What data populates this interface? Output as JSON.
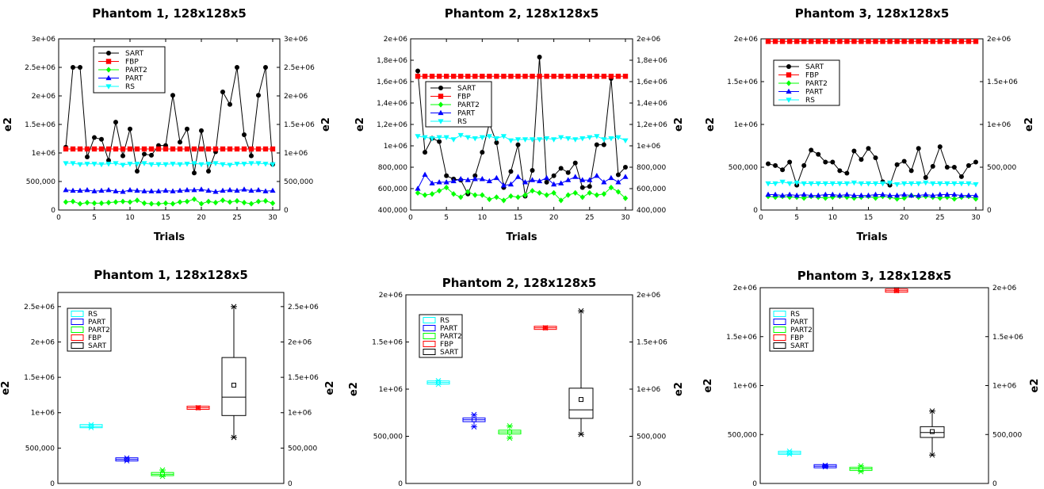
{
  "chart_data": [
    {
      "type": "line",
      "title": "Phantom 1, 128x128x5",
      "xlabel": "Trials",
      "ylabel": "e2",
      "y2label": "e2",
      "x": [
        1,
        2,
        3,
        4,
        5,
        6,
        7,
        8,
        9,
        10,
        11,
        12,
        13,
        14,
        15,
        16,
        17,
        18,
        19,
        20,
        21,
        22,
        23,
        24,
        25,
        26,
        27,
        28,
        29,
        30
      ],
      "xlim": [
        0,
        31
      ],
      "xticks": [
        "0",
        "5",
        "10",
        "15",
        "20",
        "25",
        "30"
      ],
      "ylim": [
        0,
        3000000
      ],
      "yticks": [
        "0",
        "500,000",
        "1e+06",
        "1.5e+06",
        "2e+06",
        "2.5e+06",
        "3e+06"
      ],
      "legend_position": "top-left",
      "series": [
        {
          "name": "SART",
          "color": "#000000",
          "marker": "circle",
          "values": [
            1100000,
            2500000,
            2500000,
            930000,
            1270000,
            1240000,
            870000,
            1540000,
            950000,
            1420000,
            680000,
            980000,
            960000,
            1130000,
            1130000,
            2010000,
            1190000,
            1420000,
            650000,
            1390000,
            680000,
            1020000,
            2070000,
            1850000,
            2500000,
            1320000,
            950000,
            2010000,
            2500000,
            800000
          ]
        },
        {
          "name": "FBP",
          "color": "#ff0000",
          "marker": "square",
          "values": [
            1070000,
            1070000,
            1070000,
            1070000,
            1070000,
            1070000,
            1070000,
            1070000,
            1070000,
            1070000,
            1070000,
            1070000,
            1070000,
            1070000,
            1070000,
            1070000,
            1070000,
            1070000,
            1070000,
            1070000,
            1070000,
            1070000,
            1070000,
            1070000,
            1070000,
            1070000,
            1070000,
            1070000,
            1070000,
            1070000
          ]
        },
        {
          "name": "PART2",
          "color": "#00ff00",
          "marker": "diamond",
          "values": [
            140000,
            150000,
            110000,
            130000,
            120000,
            120000,
            130000,
            140000,
            150000,
            140000,
            170000,
            120000,
            110000,
            110000,
            120000,
            110000,
            140000,
            150000,
            190000,
            110000,
            150000,
            130000,
            170000,
            140000,
            160000,
            130000,
            110000,
            150000,
            160000,
            120000
          ]
        },
        {
          "name": "PART",
          "color": "#0000ff",
          "marker": "triangle-up",
          "values": [
            350000,
            340000,
            340000,
            350000,
            330000,
            340000,
            350000,
            330000,
            320000,
            350000,
            340000,
            330000,
            330000,
            330000,
            340000,
            330000,
            340000,
            350000,
            350000,
            360000,
            340000,
            320000,
            340000,
            350000,
            340000,
            360000,
            340000,
            350000,
            330000,
            340000
          ]
        },
        {
          "name": "RS",
          "color": "#00ffff",
          "marker": "triangle-down",
          "values": [
            820000,
            820000,
            800000,
            810000,
            810000,
            800000,
            810000,
            820000,
            790000,
            810000,
            810000,
            820000,
            800000,
            800000,
            800000,
            810000,
            800000,
            810000,
            820000,
            800000,
            810000,
            820000,
            800000,
            790000,
            810000,
            810000,
            820000,
            820000,
            810000,
            800000
          ]
        }
      ]
    },
    {
      "type": "line",
      "title": "Phantom 2, 128x128x5",
      "xlabel": "Trials",
      "ylabel": "e2",
      "y2label": "e2",
      "x": [
        1,
        2,
        3,
        4,
        5,
        6,
        7,
        8,
        9,
        10,
        11,
        12,
        13,
        14,
        15,
        16,
        17,
        18,
        19,
        20,
        21,
        22,
        23,
        24,
        25,
        26,
        27,
        28,
        29,
        30
      ],
      "xlim": [
        0,
        31
      ],
      "xticks": [
        "0",
        "5",
        "10",
        "15",
        "20",
        "25",
        "30"
      ],
      "ylim": [
        400000,
        2000000
      ],
      "yticks": [
        "400,000",
        "600,000",
        "800,000",
        "1e+06",
        "1,2e+06",
        "1,4e+06",
        "1,6e+06",
        "1,8e+06",
        "2e+06"
      ],
      "legend_position": "center-left",
      "series": [
        {
          "name": "SART",
          "color": "#000000",
          "marker": "circle",
          "values": [
            1700000,
            940000,
            1070000,
            1040000,
            720000,
            690000,
            680000,
            550000,
            720000,
            940000,
            1210000,
            1030000,
            610000,
            760000,
            1010000,
            530000,
            770000,
            1830000,
            660000,
            720000,
            790000,
            750000,
            840000,
            610000,
            620000,
            1010000,
            1010000,
            1630000,
            730000,
            800000
          ]
        },
        {
          "name": "FBP",
          "color": "#ff0000",
          "marker": "square",
          "values": [
            1650000,
            1650000,
            1650000,
            1650000,
            1650000,
            1650000,
            1650000,
            1650000,
            1650000,
            1650000,
            1650000,
            1650000,
            1650000,
            1650000,
            1650000,
            1650000,
            1650000,
            1650000,
            1650000,
            1650000,
            1650000,
            1650000,
            1650000,
            1650000,
            1650000,
            1650000,
            1650000,
            1650000,
            1650000,
            1650000
          ]
        },
        {
          "name": "PART2",
          "color": "#00ff00",
          "marker": "diamond",
          "values": [
            560000,
            540000,
            550000,
            580000,
            610000,
            550000,
            520000,
            570000,
            540000,
            540000,
            500000,
            520000,
            490000,
            530000,
            520000,
            540000,
            580000,
            560000,
            540000,
            560000,
            490000,
            540000,
            560000,
            520000,
            560000,
            540000,
            550000,
            610000,
            570000,
            510000
          ]
        },
        {
          "name": "PART",
          "color": "#0000ff",
          "marker": "triangle-up",
          "values": [
            600000,
            730000,
            650000,
            660000,
            660000,
            670000,
            690000,
            680000,
            690000,
            690000,
            670000,
            700000,
            630000,
            640000,
            710000,
            660000,
            680000,
            670000,
            700000,
            640000,
            650000,
            680000,
            710000,
            680000,
            680000,
            720000,
            660000,
            700000,
            660000,
            710000
          ]
        },
        {
          "name": "RS",
          "color": "#00ffff",
          "marker": "triangle-down",
          "values": [
            1090000,
            1080000,
            1070000,
            1080000,
            1080000,
            1060000,
            1100000,
            1080000,
            1070000,
            1080000,
            1090000,
            1070000,
            1090000,
            1050000,
            1060000,
            1060000,
            1060000,
            1060000,
            1070000,
            1060000,
            1080000,
            1070000,
            1060000,
            1070000,
            1080000,
            1090000,
            1060000,
            1070000,
            1080000,
            1050000
          ]
        }
      ]
    },
    {
      "type": "line",
      "title": "Phantom 3, 128x128x5",
      "xlabel": "Trials",
      "ylabel": "e2",
      "y2label": "e2",
      "x": [
        1,
        2,
        3,
        4,
        5,
        6,
        7,
        8,
        9,
        10,
        11,
        12,
        13,
        14,
        15,
        16,
        17,
        18,
        19,
        20,
        21,
        22,
        23,
        24,
        25,
        26,
        27,
        28,
        29,
        30
      ],
      "xlim": [
        0,
        31
      ],
      "xticks": [
        "0",
        "5",
        "10",
        "15",
        "20",
        "25",
        "30"
      ],
      "ylim": [
        0,
        2000000
      ],
      "yticks": [
        "0",
        "500,000",
        "1e+06",
        "1.5e+06",
        "2e+06"
      ],
      "legend_position": "top-left",
      "series": [
        {
          "name": "SART",
          "color": "#000000",
          "marker": "circle",
          "values": [
            540000,
            520000,
            470000,
            560000,
            290000,
            520000,
            700000,
            650000,
            560000,
            560000,
            460000,
            430000,
            690000,
            590000,
            720000,
            610000,
            330000,
            290000,
            530000,
            570000,
            460000,
            720000,
            380000,
            510000,
            740000,
            500000,
            500000,
            390000,
            520000,
            560000
          ]
        },
        {
          "name": "FBP",
          "color": "#ff0000",
          "marker": "square",
          "values": [
            1970000,
            1970000,
            1970000,
            1970000,
            1970000,
            1970000,
            1970000,
            1970000,
            1970000,
            1970000,
            1970000,
            1970000,
            1970000,
            1970000,
            1970000,
            1970000,
            1970000,
            1970000,
            1970000,
            1970000,
            1970000,
            1970000,
            1970000,
            1970000,
            1970000,
            1970000,
            1970000,
            1970000,
            1970000,
            1970000
          ]
        },
        {
          "name": "PART2",
          "color": "#00ff00",
          "marker": "diamond",
          "values": [
            160000,
            150000,
            160000,
            150000,
            150000,
            140000,
            160000,
            150000,
            140000,
            150000,
            160000,
            150000,
            140000,
            150000,
            160000,
            140000,
            160000,
            150000,
            130000,
            140000,
            170000,
            150000,
            160000,
            150000,
            140000,
            150000,
            130000,
            150000,
            160000,
            130000
          ]
        },
        {
          "name": "PART",
          "color": "#0000ff",
          "marker": "triangle-up",
          "values": [
            180000,
            180000,
            170000,
            180000,
            170000,
            180000,
            170000,
            170000,
            180000,
            180000,
            170000,
            180000,
            170000,
            170000,
            170000,
            180000,
            180000,
            170000,
            170000,
            180000,
            170000,
            170000,
            180000,
            170000,
            180000,
            180000,
            180000,
            170000,
            170000,
            170000
          ]
        },
        {
          "name": "RS",
          "color": "#00ffff",
          "marker": "triangle-down",
          "values": [
            310000,
            310000,
            330000,
            310000,
            320000,
            310000,
            310000,
            310000,
            310000,
            310000,
            310000,
            310000,
            320000,
            310000,
            310000,
            310000,
            310000,
            320000,
            300000,
            310000,
            310000,
            310000,
            320000,
            310000,
            310000,
            310000,
            310000,
            310000,
            310000,
            300000
          ]
        }
      ]
    },
    {
      "type": "box",
      "title": "Phantom 1, 128x128x5",
      "ylabel": "e2",
      "y2label": "e2",
      "ylim": [
        0,
        2700000
      ],
      "yticks": [
        "0",
        "500,000",
        "1e+06",
        "1.5e+06",
        "2e+06",
        "2.5e+06"
      ],
      "legend_position": "top-left",
      "legend_order": [
        "RS",
        "PART",
        "PART2",
        "FBP",
        "SART"
      ],
      "series": [
        {
          "name": "RS",
          "color": "#00ffff",
          "min": 790000,
          "q1": 800000,
          "median": 805000,
          "q3": 820000,
          "max": 830000,
          "mean": 810000
        },
        {
          "name": "PART",
          "color": "#0000ff",
          "min": 320000,
          "q1": 332000,
          "median": 340000,
          "q3": 348000,
          "max": 360000,
          "mean": 340000
        },
        {
          "name": "PART2",
          "color": "#00ff00",
          "min": 100000,
          "q1": 115000,
          "median": 130000,
          "q3": 150000,
          "max": 190000,
          "mean": 135000
        },
        {
          "name": "FBP",
          "color": "#ff0000",
          "min": 1070000,
          "q1": 1070000,
          "median": 1070000,
          "q3": 1070000,
          "max": 1070000,
          "mean": 1070000
        },
        {
          "name": "SART",
          "color": "#000000",
          "min": 650000,
          "q1": 960000,
          "median": 1220000,
          "q3": 1780000,
          "max": 2500000,
          "mean": 1390000
        }
      ]
    },
    {
      "type": "box",
      "title": "Phantom 2, 128x128x5",
      "ylabel": "e2",
      "y2label": "e2",
      "ylim": [
        0,
        2000000
      ],
      "yticks": [
        "0",
        "500,000",
        "1e+06",
        "1.5e+06",
        "2e+06"
      ],
      "legend_position": "top-left",
      "legend_order": [
        "RS",
        "PART",
        "PART2",
        "FBP",
        "SART"
      ],
      "series": [
        {
          "name": "RS",
          "color": "#00ffff",
          "min": 1050000,
          "q1": 1060000,
          "median": 1070000,
          "q3": 1080000,
          "max": 1090000,
          "mean": 1072000
        },
        {
          "name": "PART",
          "color": "#0000ff",
          "min": 600000,
          "q1": 655000,
          "median": 675000,
          "q3": 695000,
          "max": 730000,
          "mean": 675000
        },
        {
          "name": "PART2",
          "color": "#00ff00",
          "min": 480000,
          "q1": 525000,
          "median": 545000,
          "q3": 565000,
          "max": 610000,
          "mean": 545000
        },
        {
          "name": "FBP",
          "color": "#ff0000",
          "min": 1650000,
          "q1": 1650000,
          "median": 1650000,
          "q3": 1650000,
          "max": 1650000,
          "mean": 1650000
        },
        {
          "name": "SART",
          "color": "#000000",
          "min": 520000,
          "q1": 690000,
          "median": 780000,
          "q3": 1010000,
          "max": 1830000,
          "mean": 890000
        }
      ]
    },
    {
      "type": "box",
      "title": "Phantom 3, 128x128x5",
      "ylabel": "e2",
      "y2label": "e2",
      "ylim": [
        0,
        2000000
      ],
      "yticks": [
        "0",
        "500,000",
        "1e+06",
        "1.5e+06",
        "2e+06"
      ],
      "legend_position": "top-left",
      "legend_order": [
        "RS",
        "PART",
        "PART2",
        "FBP",
        "SART"
      ],
      "series": [
        {
          "name": "RS",
          "color": "#00ffff",
          "min": 300000,
          "q1": 308000,
          "median": 312000,
          "q3": 318000,
          "max": 330000,
          "mean": 312000
        },
        {
          "name": "PART",
          "color": "#0000ff",
          "min": 170000,
          "q1": 172000,
          "median": 176000,
          "q3": 180000,
          "max": 185000,
          "mean": 176000
        },
        {
          "name": "PART2",
          "color": "#00ff00",
          "min": 120000,
          "q1": 140000,
          "median": 150000,
          "q3": 158000,
          "max": 180000,
          "mean": 148000
        },
        {
          "name": "FBP",
          "color": "#ff0000",
          "min": 1970000,
          "q1": 1970000,
          "median": 1970000,
          "q3": 1970000,
          "max": 1970000,
          "mean": 1970000
        },
        {
          "name": "SART",
          "color": "#000000",
          "min": 290000,
          "q1": 470000,
          "median": 520000,
          "q3": 580000,
          "max": 740000,
          "mean": 530000
        }
      ]
    }
  ]
}
